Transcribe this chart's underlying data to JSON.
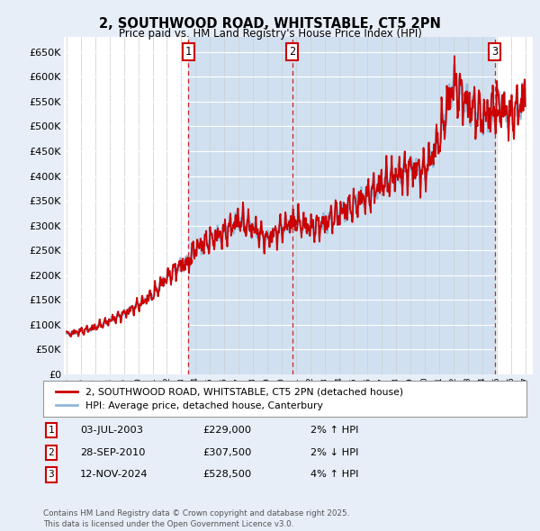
{
  "title": "2, SOUTHWOOD ROAD, WHITSTABLE, CT5 2PN",
  "subtitle": "Price paid vs. HM Land Registry's House Price Index (HPI)",
  "ylim": [
    0,
    680000
  ],
  "yticks": [
    0,
    50000,
    100000,
    150000,
    200000,
    250000,
    300000,
    350000,
    400000,
    450000,
    500000,
    550000,
    600000,
    650000
  ],
  "ytick_labels": [
    "£0",
    "£50K",
    "£100K",
    "£150K",
    "£200K",
    "£250K",
    "£300K",
    "£350K",
    "£400K",
    "£450K",
    "£500K",
    "£550K",
    "£600K",
    "£650K"
  ],
  "xlim_start": 1994.8,
  "xlim_end": 2027.5,
  "xtick_years": [
    1995,
    1996,
    1997,
    1998,
    1999,
    2000,
    2001,
    2002,
    2003,
    2004,
    2005,
    2006,
    2007,
    2008,
    2009,
    2010,
    2011,
    2012,
    2013,
    2014,
    2015,
    2016,
    2017,
    2018,
    2019,
    2020,
    2021,
    2022,
    2023,
    2024,
    2025,
    2026,
    2027
  ],
  "bg_color": "#e8eef8",
  "plot_bg_color": "#ffffff",
  "grid_color": "#cccccc",
  "hpi_line_color": "#90b8d8",
  "price_line_color": "#cc0000",
  "sale_marker_color": "#cc0000",
  "vline_color": "#cc0000",
  "shade_color": "#d0e0f0",
  "sale_events": [
    {
      "year": 2003.5,
      "label": "1",
      "price": 229000
    },
    {
      "year": 2010.75,
      "label": "2",
      "price": 307500
    },
    {
      "year": 2024.87,
      "label": "3",
      "price": 528500
    }
  ],
  "legend_entry1": "2, SOUTHWOOD ROAD, WHITSTABLE, CT5 2PN (detached house)",
  "legend_entry2": "HPI: Average price, detached house, Canterbury",
  "table_rows": [
    {
      "num": "1",
      "date": "03-JUL-2003",
      "price": "£229,000",
      "change": "2% ↑ HPI"
    },
    {
      "num": "2",
      "date": "28-SEP-2010",
      "price": "£307,500",
      "change": "2% ↓ HPI"
    },
    {
      "num": "3",
      "date": "12-NOV-2024",
      "price": "£528,500",
      "change": "4% ↑ HPI"
    }
  ],
  "footer": "Contains HM Land Registry data © Crown copyright and database right 2025.\nThis data is licensed under the Open Government Licence v3.0."
}
